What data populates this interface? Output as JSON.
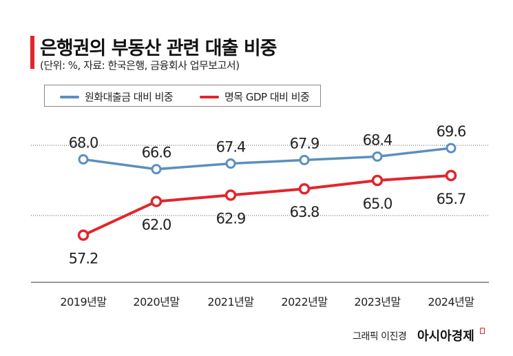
{
  "chart_data": {
    "type": "line",
    "title": "은행권의 부동산 관련 대출 비중",
    "subtitle": "(단위: %, 자료: 한국은행, 금융회사 업무보고서)",
    "categories": [
      "2019년말",
      "2020년말",
      "2021년말",
      "2022년말",
      "2023년말",
      "2024년말"
    ],
    "series": [
      {
        "name": "원화대출금 대비 비중",
        "color": "#5b8fc0",
        "values": [
          68.0,
          66.6,
          67.4,
          67.9,
          68.4,
          69.6
        ],
        "labels": [
          "68.0",
          "66.6",
          "67.4",
          "67.9",
          "68.4",
          "69.6"
        ]
      },
      {
        "name": "명목 GDP 대비 비중",
        "color": "#e0262b",
        "values": [
          57.2,
          62.0,
          62.9,
          63.8,
          65.0,
          65.7
        ],
        "labels": [
          "57.2",
          "62.0",
          "62.9",
          "63.8",
          "65.0",
          "65.7"
        ]
      }
    ],
    "gridlines": [
      60,
      70
    ],
    "legend": "top-left"
  },
  "credit": "그래픽 이진경",
  "logo": "아시아경제"
}
